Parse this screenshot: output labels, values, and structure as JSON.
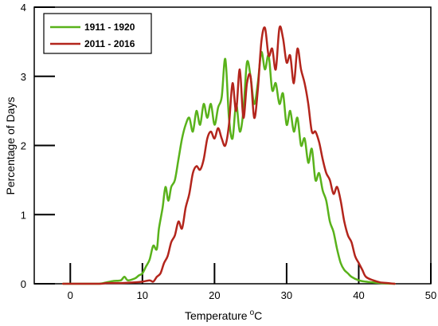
{
  "chart_data": {
    "type": "line",
    "title": "",
    "xlabel": "Temperature",
    "xlabel_unit_superscript": "o",
    "xlabel_unit_suffix": "C",
    "ylabel": "Percentage of Days",
    "xlim": [
      -5,
      50
    ],
    "ylim": [
      0,
      4
    ],
    "x_ticks": [
      {
        "value": 0,
        "label": "0"
      },
      {
        "value": 10,
        "label": "10"
      },
      {
        "value": 20,
        "label": "20"
      },
      {
        "value": 30,
        "label": "30"
      },
      {
        "value": 40,
        "label": "40"
      },
      {
        "value": 50,
        "label": "50"
      }
    ],
    "y_ticks": [
      {
        "value": 0,
        "label": "0"
      },
      {
        "value": 1,
        "label": "1"
      },
      {
        "value": 2,
        "label": "2"
      },
      {
        "value": 3,
        "label": "3"
      },
      {
        "value": 4,
        "label": "4"
      }
    ],
    "grid": false,
    "legend_position": "top-left",
    "series": [
      {
        "name": "1911 - 1920",
        "color": "#59b21b",
        "points": [
          [
            -1,
            0
          ],
          [
            2,
            0
          ],
          [
            4,
            0
          ],
          [
            5,
            0.02
          ],
          [
            6,
            0.04
          ],
          [
            7,
            0.05
          ],
          [
            7.5,
            0.1
          ],
          [
            8,
            0.05
          ],
          [
            9,
            0.08
          ],
          [
            9.5,
            0.12
          ],
          [
            10,
            0.15
          ],
          [
            10.5,
            0.25
          ],
          [
            11,
            0.35
          ],
          [
            11.5,
            0.55
          ],
          [
            12,
            0.5
          ],
          [
            12.3,
            0.8
          ],
          [
            12.8,
            1.1
          ],
          [
            13.2,
            1.4
          ],
          [
            13.6,
            1.2
          ],
          [
            14,
            1.4
          ],
          [
            14.5,
            1.5
          ],
          [
            15,
            1.8
          ],
          [
            15.5,
            2.1
          ],
          [
            16,
            2.3
          ],
          [
            16.5,
            2.4
          ],
          [
            17,
            2.2
          ],
          [
            17.5,
            2.5
          ],
          [
            18,
            2.3
          ],
          [
            18.5,
            2.6
          ],
          [
            19,
            2.4
          ],
          [
            19.5,
            2.6
          ],
          [
            20,
            2.3
          ],
          [
            20.5,
            2.55
          ],
          [
            21,
            2.7
          ],
          [
            21.5,
            3.25
          ],
          [
            22,
            2.4
          ],
          [
            22.5,
            2.1
          ],
          [
            23,
            2.6
          ],
          [
            23.5,
            2.2
          ],
          [
            24,
            2.5
          ],
          [
            24.5,
            3.2
          ],
          [
            25,
            3.0
          ],
          [
            25.5,
            2.6
          ],
          [
            26,
            2.9
          ],
          [
            26.5,
            3.35
          ],
          [
            27,
            3.1
          ],
          [
            27.5,
            3.3
          ],
          [
            28,
            2.8
          ],
          [
            28.5,
            2.9
          ],
          [
            29,
            2.6
          ],
          [
            29.5,
            2.75
          ],
          [
            30,
            2.3
          ],
          [
            30.5,
            2.5
          ],
          [
            31,
            2.2
          ],
          [
            31.5,
            2.4
          ],
          [
            32,
            2.0
          ],
          [
            32.5,
            2.1
          ],
          [
            33,
            1.75
          ],
          [
            33.5,
            1.95
          ],
          [
            34,
            1.5
          ],
          [
            34.5,
            1.6
          ],
          [
            35,
            1.35
          ],
          [
            35.5,
            1.2
          ],
          [
            36,
            0.9
          ],
          [
            36.5,
            0.75
          ],
          [
            37,
            0.5
          ],
          [
            37.5,
            0.3
          ],
          [
            38,
            0.2
          ],
          [
            38.5,
            0.15
          ],
          [
            39,
            0.1
          ],
          [
            40,
            0.05
          ],
          [
            41,
            0.03
          ],
          [
            43,
            0.01
          ],
          [
            45,
            0
          ]
        ]
      },
      {
        "name": "2011 - 2016",
        "color": "#b3251c",
        "points": [
          [
            -1,
            0
          ],
          [
            4,
            0
          ],
          [
            5,
            0.01
          ],
          [
            7,
            0.01
          ],
          [
            9,
            0.02
          ],
          [
            10,
            0.03
          ],
          [
            11,
            0.05
          ],
          [
            11.5,
            0.03
          ],
          [
            12,
            0.1
          ],
          [
            12.5,
            0.15
          ],
          [
            13,
            0.3
          ],
          [
            13.5,
            0.4
          ],
          [
            14,
            0.6
          ],
          [
            14.5,
            0.7
          ],
          [
            15,
            0.9
          ],
          [
            15.5,
            0.8
          ],
          [
            16,
            1.1
          ],
          [
            16.5,
            1.3
          ],
          [
            17,
            1.6
          ],
          [
            17.5,
            1.7
          ],
          [
            18,
            1.65
          ],
          [
            18.5,
            1.8
          ],
          [
            19,
            2.1
          ],
          [
            19.5,
            2.2
          ],
          [
            20,
            2.1
          ],
          [
            20.5,
            2.25
          ],
          [
            21,
            2.1
          ],
          [
            21.5,
            2.0
          ],
          [
            22,
            2.3
          ],
          [
            22.5,
            2.9
          ],
          [
            23,
            2.5
          ],
          [
            23.5,
            3.1
          ],
          [
            24,
            2.4
          ],
          [
            24.5,
            2.9
          ],
          [
            25,
            3.0
          ],
          [
            25.5,
            2.4
          ],
          [
            26,
            2.8
          ],
          [
            26.5,
            3.5
          ],
          [
            27,
            3.7
          ],
          [
            27.5,
            3.3
          ],
          [
            28,
            3.4
          ],
          [
            28.5,
            3.1
          ],
          [
            29,
            3.7
          ],
          [
            29.5,
            3.55
          ],
          [
            30,
            3.2
          ],
          [
            30.5,
            3.3
          ],
          [
            31,
            2.9
          ],
          [
            31.5,
            3.4
          ],
          [
            32,
            3.1
          ],
          [
            32.5,
            2.9
          ],
          [
            33,
            2.6
          ],
          [
            33.5,
            2.2
          ],
          [
            34,
            2.2
          ],
          [
            34.5,
            2.05
          ],
          [
            35,
            1.8
          ],
          [
            35.5,
            1.6
          ],
          [
            36,
            1.5
          ],
          [
            36.5,
            1.3
          ],
          [
            37,
            1.4
          ],
          [
            37.5,
            1.2
          ],
          [
            38,
            0.9
          ],
          [
            38.5,
            0.7
          ],
          [
            39,
            0.6
          ],
          [
            39.5,
            0.4
          ],
          [
            40,
            0.3
          ],
          [
            40.5,
            0.2
          ],
          [
            41,
            0.1
          ],
          [
            42,
            0.05
          ],
          [
            43,
            0.02
          ],
          [
            44,
            0.01
          ],
          [
            45,
            0
          ]
        ]
      }
    ]
  }
}
